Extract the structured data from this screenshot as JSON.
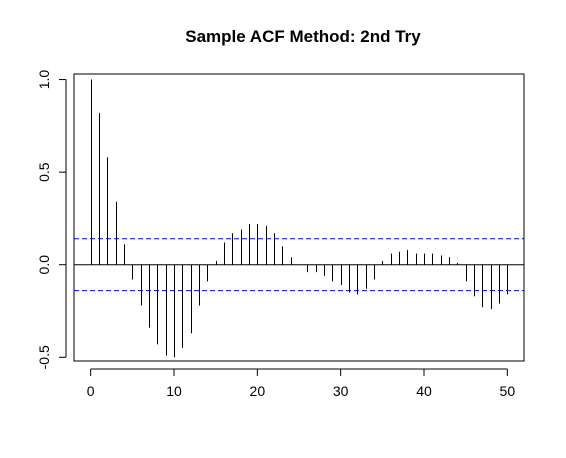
{
  "chart_data": {
    "type": "bar",
    "title": "Sample ACF Method: 2nd Try",
    "xlabel": "",
    "ylabel": "",
    "xlim": [
      -2,
      52
    ],
    "ylim": [
      -0.52,
      1.03
    ],
    "x_ticks": [
      0,
      10,
      20,
      30,
      40,
      50
    ],
    "y_ticks": [
      -0.5,
      0.0,
      0.5,
      1.0
    ],
    "y_tick_labels": [
      "-0.5",
      "0.0",
      "0.5",
      "1.0"
    ],
    "x_tick_labels": [
      "0",
      "10",
      "20",
      "30",
      "40",
      "50"
    ],
    "confidence_band": 0.14,
    "band_color": "#0000ff",
    "grid": false,
    "lags": [
      0,
      1,
      2,
      3,
      4,
      5,
      6,
      7,
      8,
      9,
      10,
      11,
      12,
      13,
      14,
      15,
      16,
      17,
      18,
      19,
      20,
      21,
      22,
      23,
      24,
      25,
      26,
      27,
      28,
      29,
      30,
      31,
      32,
      33,
      34,
      35,
      36,
      37,
      38,
      39,
      40,
      41,
      42,
      43,
      44,
      45,
      46,
      47,
      48,
      49,
      50
    ],
    "values": [
      1.0,
      0.82,
      0.58,
      0.34,
      0.11,
      -0.08,
      -0.22,
      -0.34,
      -0.43,
      -0.49,
      -0.5,
      -0.45,
      -0.37,
      -0.22,
      -0.09,
      0.02,
      0.12,
      0.17,
      0.19,
      0.22,
      0.22,
      0.21,
      0.17,
      0.1,
      0.04,
      0.0,
      -0.04,
      -0.04,
      -0.06,
      -0.09,
      -0.11,
      -0.15,
      -0.16,
      -0.13,
      -0.08,
      0.02,
      0.06,
      0.07,
      0.08,
      0.06,
      0.06,
      0.06,
      0.05,
      0.04,
      0.01,
      -0.09,
      -0.17,
      -0.23,
      -0.24,
      -0.21,
      -0.16
    ]
  }
}
